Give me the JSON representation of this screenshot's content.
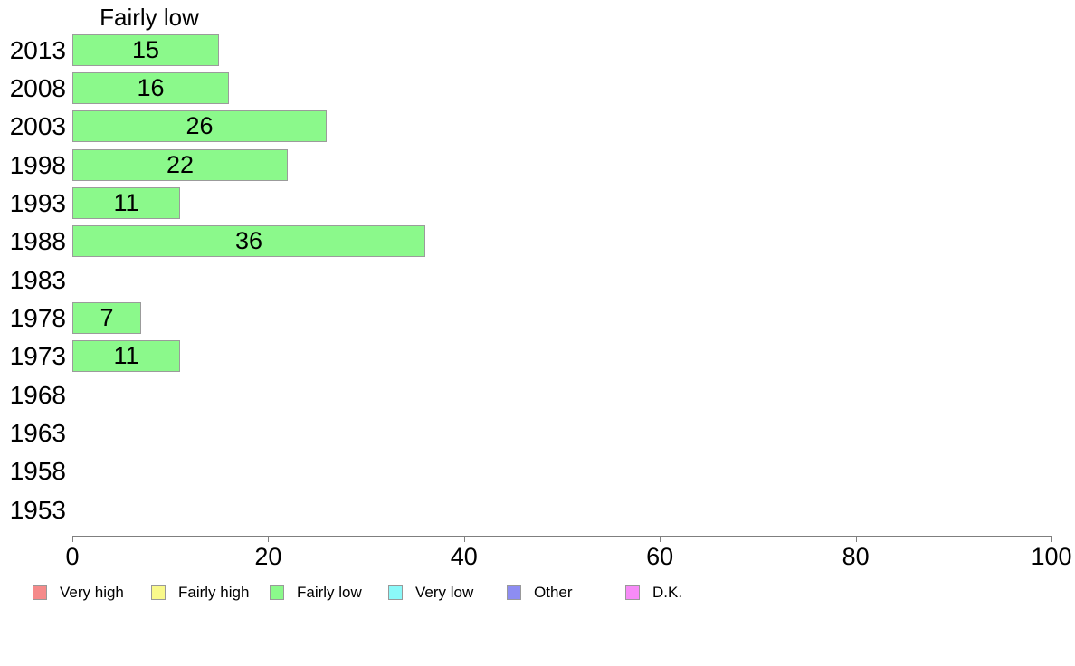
{
  "chart_data": {
    "type": "bar",
    "orientation": "horizontal",
    "title": "Fairly low",
    "categories": [
      "2013",
      "2008",
      "2003",
      "1998",
      "1993",
      "1988",
      "1983",
      "1978",
      "1973",
      "1968",
      "1963",
      "1958",
      "1953"
    ],
    "values": [
      15,
      16,
      26,
      22,
      11,
      36,
      null,
      7,
      11,
      null,
      null,
      null,
      null
    ],
    "xlim": [
      0,
      100
    ],
    "x_ticks": [
      0,
      20,
      40,
      60,
      80,
      100
    ],
    "grid": false,
    "bar_color": "#8BF98B",
    "bar_border_color": "#9B9B9B",
    "axis_color": "#7F7F7F",
    "legend_position": "bottom",
    "legend": [
      {
        "label": "Very high",
        "color": "#F58A8A"
      },
      {
        "label": "Fairly high",
        "color": "#F9F98B"
      },
      {
        "label": "Fairly low",
        "color": "#8BF98B"
      },
      {
        "label": "Very low",
        "color": "#8BF9F9"
      },
      {
        "label": "Other",
        "color": "#8D8DF2"
      },
      {
        "label": "D.K.",
        "color": "#F78BF7"
      }
    ]
  }
}
